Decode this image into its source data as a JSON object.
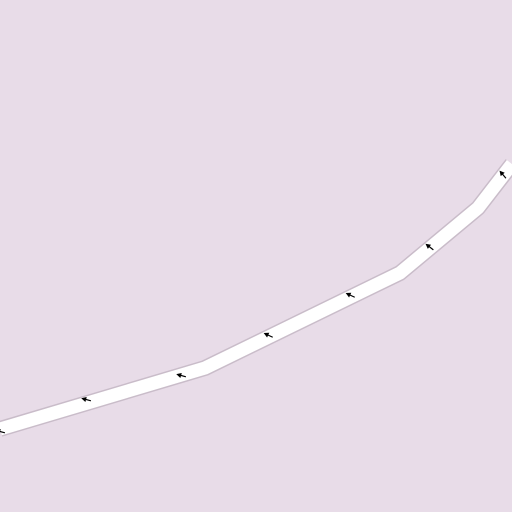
{
  "map": {
    "type": "street-map-tile",
    "background_color": "#e8dce8",
    "area_type": "residential-landuse",
    "road": {
      "kind": "one-way-street",
      "fill_color": "#ffffff",
      "casing_color": "#c9bcc9",
      "oneway_direction": "westbound",
      "arrow_color": "#000000",
      "arrow_icon": "oneway-arrow-icon"
    }
  }
}
